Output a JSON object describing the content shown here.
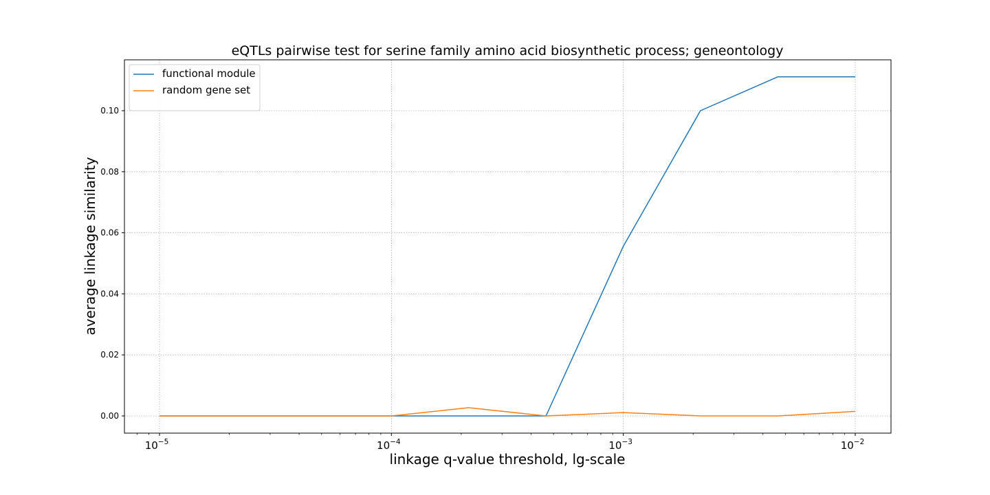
{
  "chart_data": {
    "type": "line",
    "title": "eQTLs pairwise test for serine family amino acid biosynthetic process; geneontology",
    "xlabel": "linkage q-value threshold, lg-scale",
    "ylabel": "average linkage similarity",
    "x_scale": "log",
    "x_tick_values": [
      1e-05,
      0.0001,
      0.001,
      0.01
    ],
    "x_tick_labels": [
      {
        "base": "10",
        "exp": "−5"
      },
      {
        "base": "10",
        "exp": "−4"
      },
      {
        "base": "10",
        "exp": "−3"
      },
      {
        "base": "10",
        "exp": "−2"
      }
    ],
    "y_ticks": [
      0.0,
      0.02,
      0.04,
      0.06,
      0.08,
      0.1
    ],
    "y_tick_labels": [
      "0.00",
      "0.02",
      "0.04",
      "0.06",
      "0.08",
      "0.10"
    ],
    "grid": true,
    "legend_position": "upper-left",
    "x": [
      1e-05,
      2.15e-05,
      4.64e-05,
      0.0001,
      0.000215,
      0.000464,
      0.001,
      0.00215,
      0.00464,
      0.01
    ],
    "series": [
      {
        "name": "functional module",
        "color": "#1f77b4",
        "values": [
          0,
          0,
          0,
          0,
          0,
          0,
          0.0556,
          0.1,
          0.1111,
          0.1111
        ]
      },
      {
        "name": "random gene set",
        "color": "#ff7f0e",
        "values": [
          0,
          0,
          0,
          0,
          0.0027,
          0,
          0.0011,
          0,
          0,
          0.0015
        ]
      }
    ]
  }
}
